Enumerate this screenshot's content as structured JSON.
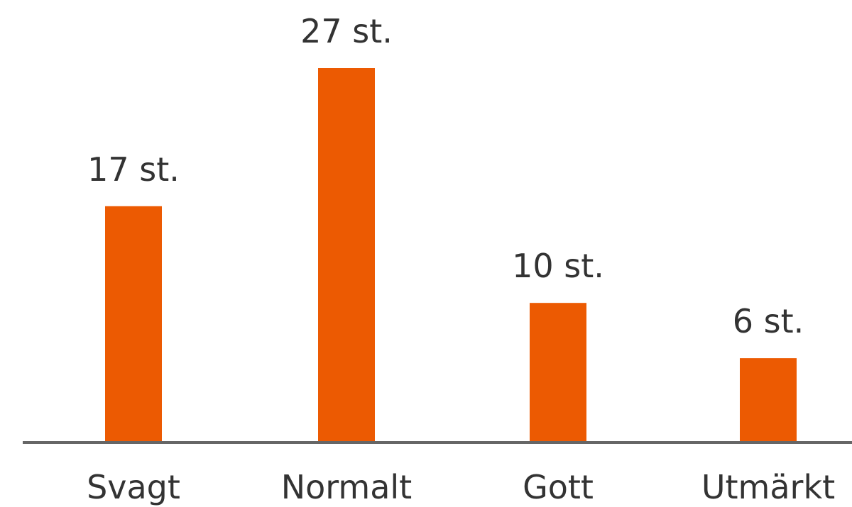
{
  "chart_data": {
    "type": "bar",
    "categories": [
      "Svagt",
      "Normalt",
      "Gott",
      "Utmärkt"
    ],
    "values": [
      17,
      27,
      10,
      6
    ],
    "data_labels": [
      "17 st.",
      "27 st.",
      "10 st.",
      "6 st."
    ],
    "title": "",
    "xlabel": "",
    "ylabel": "",
    "ylim": [
      0,
      32
    ],
    "grid": false,
    "legend": "none",
    "colors": {
      "bar": "#EC5A02",
      "axis": "#666666",
      "text": "#333333"
    }
  }
}
